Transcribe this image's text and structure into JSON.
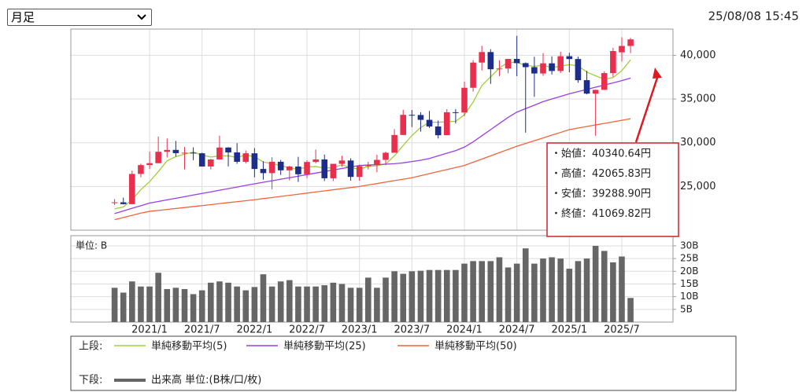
{
  "toolbar": {
    "period": "月足",
    "timestamp": "25/08/08 15:45"
  },
  "chart_data": {
    "type": "candlestick",
    "categories": [
      null,
      null,
      null,
      null,
      "2021/1",
      null,
      null,
      null,
      null,
      null,
      "2021/7",
      null,
      null,
      null,
      null,
      null,
      "2022/1",
      null,
      null,
      null,
      null,
      null,
      "2022/7",
      null,
      null,
      null,
      null,
      null,
      "2023/1",
      null,
      null,
      null,
      null,
      null,
      "2023/7",
      null,
      null,
      null,
      null,
      null,
      "2024/1",
      null,
      null,
      null,
      null,
      null,
      "2024/7",
      null,
      null,
      null,
      null,
      null,
      "2025/1",
      null,
      null,
      null,
      null,
      null,
      "2025/7",
      null
    ],
    "open": [
      23139,
      23185,
      22977,
      26433,
      27444,
      27663,
      28966,
      29178,
      28812,
      28860,
      28791,
      27283,
      28089,
      29452,
      28892,
      27821,
      28791,
      27001,
      26526,
      27821,
      26847,
      27279,
      26393,
      27801,
      28091,
      25937,
      27587,
      27968,
      26094,
      27327,
      27445,
      28041,
      28856,
      30887,
      33189,
      33172,
      32619,
      31857,
      30858,
      33486,
      33464,
      36286,
      39166,
      40369,
      38405,
      38487,
      39583,
      39101,
      38647,
      37919,
      39081,
      38208,
      39894,
      39572,
      37155,
      35617,
      36045,
      37965,
      40340.64,
      41069
    ],
    "high": [
      23559,
      23725,
      26805,
      27602,
      28979,
      30714,
      30485,
      30208,
      29518,
      29480,
      28852,
      28139,
      30795,
      29490,
      29960,
      29121,
      29388,
      27880,
      28338,
      28038,
      27369,
      28389,
      28002,
      29222,
      28644,
      27587,
      28502,
      28226,
      27500,
      27821,
      28623,
      28979,
      31560,
      33772,
      33753,
      33488,
      33634,
      32533,
      33853,
      33853,
      36984,
      39426,
      41087,
      40697,
      39437,
      39594,
      42224,
      39188,
      39829,
      40257,
      39884,
      40398,
      40288,
      39843,
      38220,
      36066,
      38173,
      40852,
      42065.83,
      42000
    ],
    "low": [
      22878,
      22948,
      22948,
      26054,
      27002,
      27663,
      28308,
      28420,
      26954,
      28010,
      27272,
      26954,
      28089,
      27293,
      27588,
      27641,
      26044,
      25775,
      24681,
      26319,
      25688,
      25520,
      25946,
      27651,
      25621,
      25621,
      27249,
      25661,
      25661,
      26949,
      26632,
      27427,
      28856,
      30887,
      31791,
      31275,
      31674,
      30487,
      30858,
      32205,
      33053,
      35854,
      38271,
      36733,
      37617,
      37950,
      37611,
      31156,
      35247,
      37651,
      37801,
      37978,
      38055,
      36857,
      35526,
      30792,
      36045,
      37541,
      39288.9,
      40255
    ],
    "close": [
      23185,
      22977,
      26433,
      27444,
      27663,
      28966,
      29178,
      28812,
      28860,
      28791,
      27283,
      28089,
      29452,
      28892,
      27821,
      28791,
      27001,
      26526,
      27821,
      26847,
      27279,
      26393,
      27801,
      28091,
      25937,
      27587,
      27968,
      26094,
      27327,
      27445,
      28041,
      28856,
      30887,
      33189,
      33172,
      32619,
      31857,
      30858,
      33486,
      33464,
      36286,
      39166,
      40369,
      38405,
      38487,
      39583,
      39101,
      38647,
      37919,
      39081,
      38208,
      39894,
      39572,
      37155,
      35617,
      36045,
      37965,
      40487,
      41069.82,
      41820
    ],
    "up_color": "#e8304e",
    "down_color": "#1c2d8a",
    "ylim": [
      20000,
      43000
    ],
    "yticks": [
      {
        "value": 25000,
        "label": "25,000"
      },
      {
        "value": 30000,
        "label": "30,000"
      },
      {
        "value": 35000,
        "label": "35,000"
      },
      {
        "value": 40000,
        "label": "40,000"
      }
    ],
    "grid": true,
    "legend_label": "上段:",
    "series": [
      {
        "name": "単純移動平均(5)",
        "color": "#9fcf3c",
        "values": [
          22440,
          22660,
          23489,
          24636,
          25540,
          26697,
          27937,
          28413,
          28696,
          28921,
          28585,
          28367,
          28495,
          28501,
          28307,
          28609,
          28391,
          27806,
          27592,
          27397,
          27095,
          26973,
          27228,
          27282,
          27100,
          27162,
          27477,
          27135,
          26983,
          27284,
          27375,
          27553,
          28511,
          29684,
          30829,
          31745,
          32345,
          32339,
          32398,
          32457,
          33190,
          34652,
          36554,
          37538,
          38543,
          39202,
          39189,
          38845,
          38747,
          38866,
          38591,
          38750,
          38935,
          38782,
          38089,
          37657,
          37271,
          37454,
          38237,
          39477
        ]
      },
      {
        "name": "単純移動平均(25)",
        "color": "#9a3ee6",
        "values": [
          21900,
          22200,
          22500,
          22800,
          23100,
          23280,
          23470,
          23650,
          23830,
          24020,
          24200,
          24380,
          24570,
          24750,
          24930,
          25120,
          25300,
          25480,
          25650,
          25830,
          26000,
          26180,
          26350,
          26530,
          26700,
          26880,
          27050,
          27230,
          27400,
          27450,
          27500,
          27550,
          27600,
          27700,
          27850,
          28000,
          28200,
          28500,
          28800,
          29100,
          29500,
          30100,
          30800,
          31500,
          32200,
          32900,
          33500,
          33900,
          34300,
          34700,
          35000,
          35300,
          35600,
          35850,
          36100,
          36350,
          36600,
          36850,
          37100,
          37400
        ]
      },
      {
        "name": "単純移動平均(50)",
        "color": "#f0643c",
        "values": [
          21200,
          21450,
          21700,
          21950,
          22150,
          22260,
          22370,
          22480,
          22590,
          22700,
          22810,
          22920,
          23040,
          23150,
          23260,
          23370,
          23480,
          23610,
          23730,
          23860,
          23990,
          24110,
          24240,
          24370,
          24490,
          24620,
          24750,
          24870,
          25000,
          25170,
          25330,
          25500,
          25670,
          25830,
          26000,
          26230,
          26470,
          26700,
          26930,
          27170,
          27400,
          27770,
          28130,
          28500,
          28870,
          29230,
          29600,
          29920,
          30230,
          30550,
          30870,
          31180,
          31500,
          31680,
          31860,
          32040,
          32210,
          32390,
          32570,
          32750
        ]
      }
    ],
    "volume": {
      "name": "出来高 単位:(B株/口/枚)",
      "legend_label": "下段:",
      "unit_label": "単位: B",
      "color": "#666666",
      "ylim": [
        0,
        34
      ],
      "yticks": [
        {
          "value": 5,
          "label": "5B"
        },
        {
          "value": 10,
          "label": "10B"
        },
        {
          "value": 15,
          "label": "15B"
        },
        {
          "value": 20,
          "label": "20B"
        },
        {
          "value": 25,
          "label": "25B"
        },
        {
          "value": 30,
          "label": "30B"
        }
      ],
      "values": [
        13.5,
        11.6,
        16,
        14,
        14,
        19.4,
        13,
        13.5,
        13,
        11,
        12.5,
        15.5,
        16,
        15.5,
        14,
        12.5,
        13.8,
        18.8,
        14,
        16,
        16.5,
        14,
        14,
        14,
        14.5,
        15.5,
        15,
        13.5,
        13.5,
        17.5,
        13.5,
        17.5,
        20,
        19,
        20,
        20.2,
        20.5,
        20.5,
        20.5,
        20.5,
        23,
        24,
        24,
        24,
        25.5,
        21.5,
        23,
        29,
        23,
        25,
        25.5,
        25,
        21,
        24,
        25,
        30,
        28,
        23.5,
        25.8,
        9.5
      ]
    },
    "tooltip": [
      "・始値：40340.64円",
      "・高値：42065.83円",
      "・安値：39288.90円",
      "・終値：41069.82円"
    ]
  }
}
